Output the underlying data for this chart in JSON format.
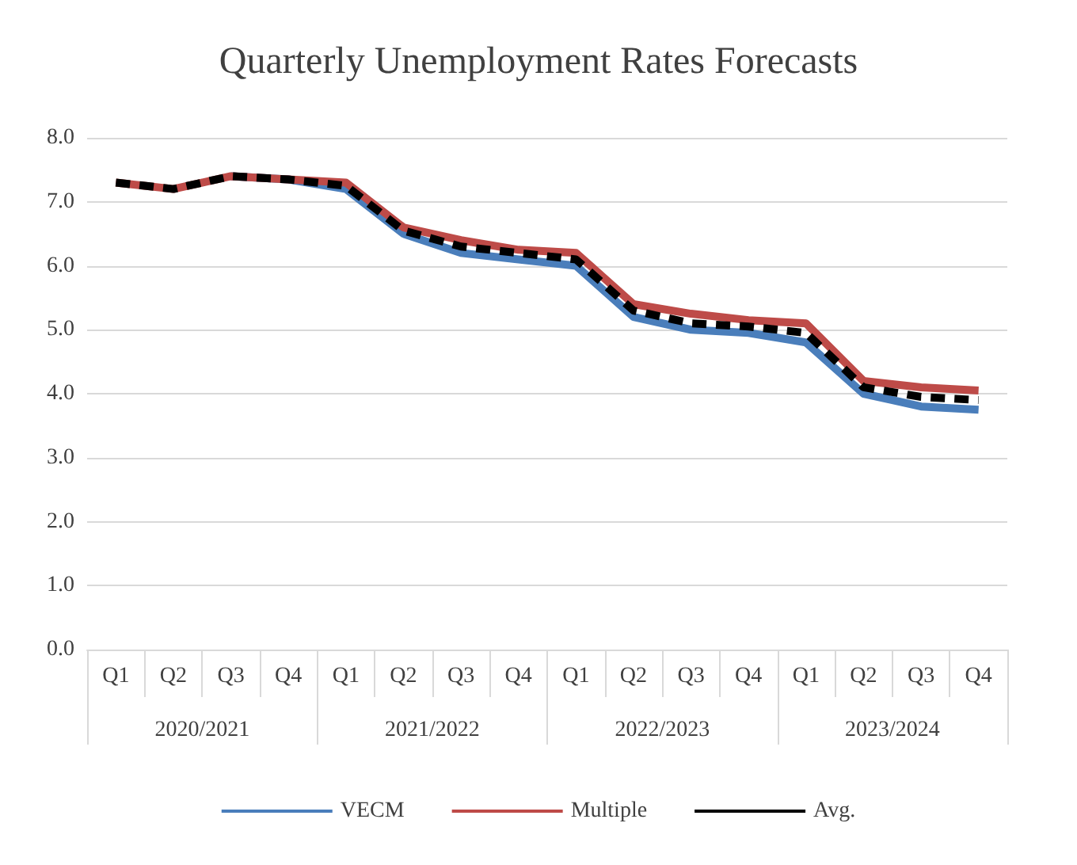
{
  "chart_data": {
    "type": "line",
    "title": "Quarterly Unemployment Rates Forecasts",
    "categories": [
      "Q1",
      "Q2",
      "Q3",
      "Q4",
      "Q1",
      "Q2",
      "Q3",
      "Q4",
      "Q1",
      "Q2",
      "Q3",
      "Q4",
      "Q1",
      "Q2",
      "Q3",
      "Q4"
    ],
    "annotations": [
      "2020/2021",
      "2021/2022",
      "2022/2023",
      "2023/2024"
    ],
    "series": [
      {
        "name": "VECM",
        "color": "#4a7ebb",
        "line_style": "solid",
        "values": [
          null,
          null,
          7.4,
          7.35,
          7.2,
          6.5,
          6.2,
          6.1,
          6.0,
          5.2,
          5.0,
          4.95,
          4.8,
          4.0,
          3.8,
          3.75
        ]
      },
      {
        "name": "Multiple",
        "color": "#be4b48",
        "line_style": "solid",
        "values": [
          7.3,
          7.2,
          7.4,
          7.35,
          7.3,
          6.6,
          6.4,
          6.25,
          6.2,
          5.4,
          5.25,
          5.15,
          5.1,
          4.2,
          4.1,
          4.05
        ]
      },
      {
        "name": "Avg.",
        "color": "#000000",
        "line_style": "dashed",
        "values": [
          7.3,
          7.2,
          7.4,
          7.35,
          7.25,
          6.55,
          6.3,
          6.2,
          6.1,
          5.3,
          5.1,
          5.05,
          4.95,
          4.1,
          3.95,
          3.9
        ]
      }
    ],
    "ylim": [
      0,
      8
    ],
    "yticks": [
      {
        "value": 0,
        "label": "0.0"
      },
      {
        "value": 1,
        "label": "1.0"
      },
      {
        "value": 2,
        "label": "2.0"
      },
      {
        "value": 3,
        "label": "3.0"
      },
      {
        "value": 4,
        "label": "4.0"
      },
      {
        "value": 5,
        "label": "5.0"
      },
      {
        "value": 6,
        "label": "6.0"
      },
      {
        "value": 7,
        "label": "7.0"
      },
      {
        "value": 8,
        "label": "8.0"
      }
    ],
    "grid": "y",
    "legend": "bottom",
    "marker": "none"
  }
}
